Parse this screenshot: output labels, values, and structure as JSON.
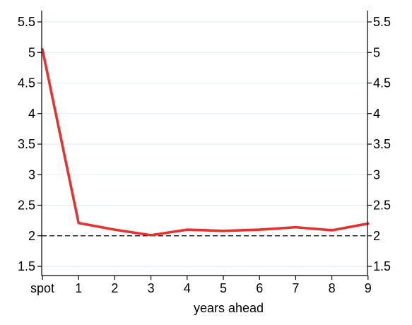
{
  "chart_data": {
    "type": "line",
    "title": "",
    "xlabel": "years ahead",
    "ylabel": "",
    "categories": [
      "spot",
      "1",
      "2",
      "3",
      "4",
      "5",
      "6",
      "7",
      "8",
      "9"
    ],
    "series": [
      {
        "values": [
          5.05,
          2.21,
          2.1,
          2.01,
          2.1,
          2.08,
          2.1,
          2.14,
          2.09,
          2.2
        ]
      }
    ],
    "reference_line": {
      "y": 2.0,
      "style": "dashed"
    },
    "y_ticks": [
      1.5,
      2,
      2.5,
      3,
      3.5,
      4,
      4.5,
      5,
      5.5
    ],
    "y_tick_labels": [
      "1.5",
      "2",
      "2.5",
      "3",
      "3.5",
      "4",
      "4.5",
      "5",
      "5.5"
    ],
    "ylim": [
      1.5,
      5.5
    ],
    "grid": true,
    "legend": "none",
    "mirror_y_axis_right": true,
    "colors": {
      "series": "#e8312f",
      "grid": "#e3ebf1",
      "axis": "#000000",
      "reference": "#000000"
    }
  }
}
